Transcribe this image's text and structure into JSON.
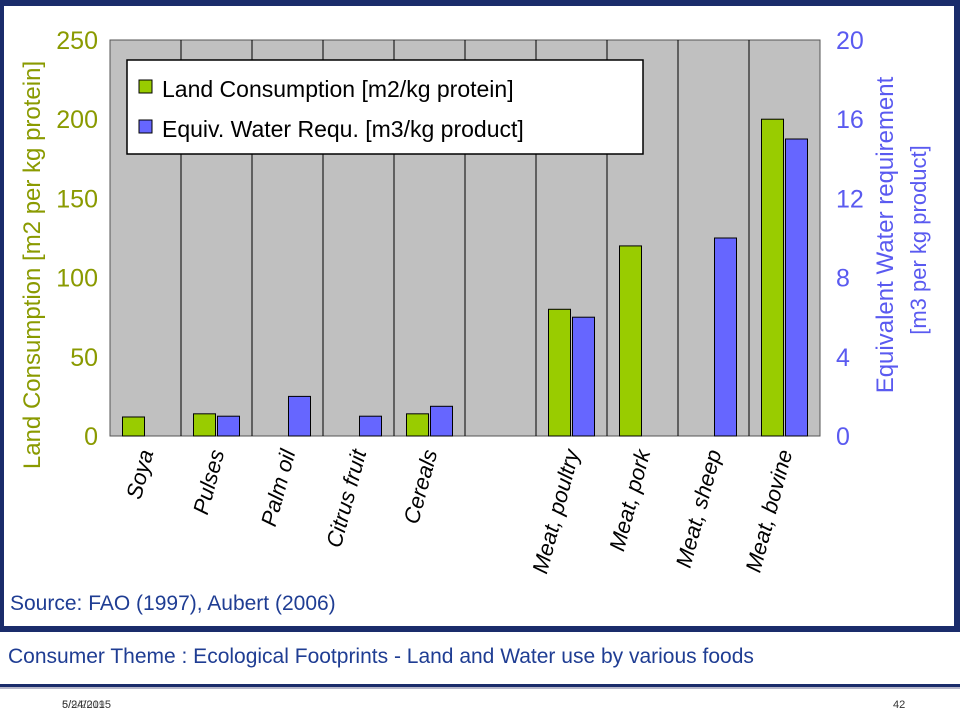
{
  "chart_data": {
    "type": "bar",
    "categories": [
      "Soya",
      "Pulses",
      "Palm oil",
      "Citrus fruit",
      "Cereals",
      "",
      "Meat, poultry",
      "Meat, pork",
      "Meat, sheep",
      "Meat, bovine"
    ],
    "series": [
      {
        "name": "Land Consumption [m2/kg protein]",
        "values": [
          12,
          14,
          null,
          null,
          14,
          null,
          80,
          120,
          null,
          200
        ],
        "axis": "left",
        "color": "#99cc00"
      },
      {
        "name": "Equiv. Water Requ. [m3/kg product]",
        "values": [
          null,
          1,
          2,
          1,
          1.5,
          null,
          6,
          null,
          10,
          15
        ],
        "axis": "right",
        "color": "#6666ff"
      }
    ],
    "ylabel": "Land Consumption [m2 per kg protein]",
    "ylabel_right_line1": "Equivalent Water requirement",
    "ylabel_right_line2": "[m3 per kg product]",
    "ylim": [
      0,
      250
    ],
    "ylim_right": [
      0,
      20
    ],
    "yticks": [
      "0",
      "50",
      "100",
      "150",
      "200",
      "250"
    ],
    "yticks_right": [
      "0",
      "4",
      "8",
      "12",
      "16",
      "20"
    ],
    "grid": "vertical",
    "legend_position": "top-left",
    "plot_background": "#c0c0c0",
    "left_axis_color": "#8a9a00",
    "right_axis_color": "#5a5af0",
    "source": "Source: FAO (1997), Aubert (2006)"
  },
  "caption": "Consumer Theme : Ecological Footprints - Land and Water use by various foods",
  "footer": {
    "date_a": "5/24/2015",
    "date_b": "6/9/2019",
    "page": "42"
  }
}
